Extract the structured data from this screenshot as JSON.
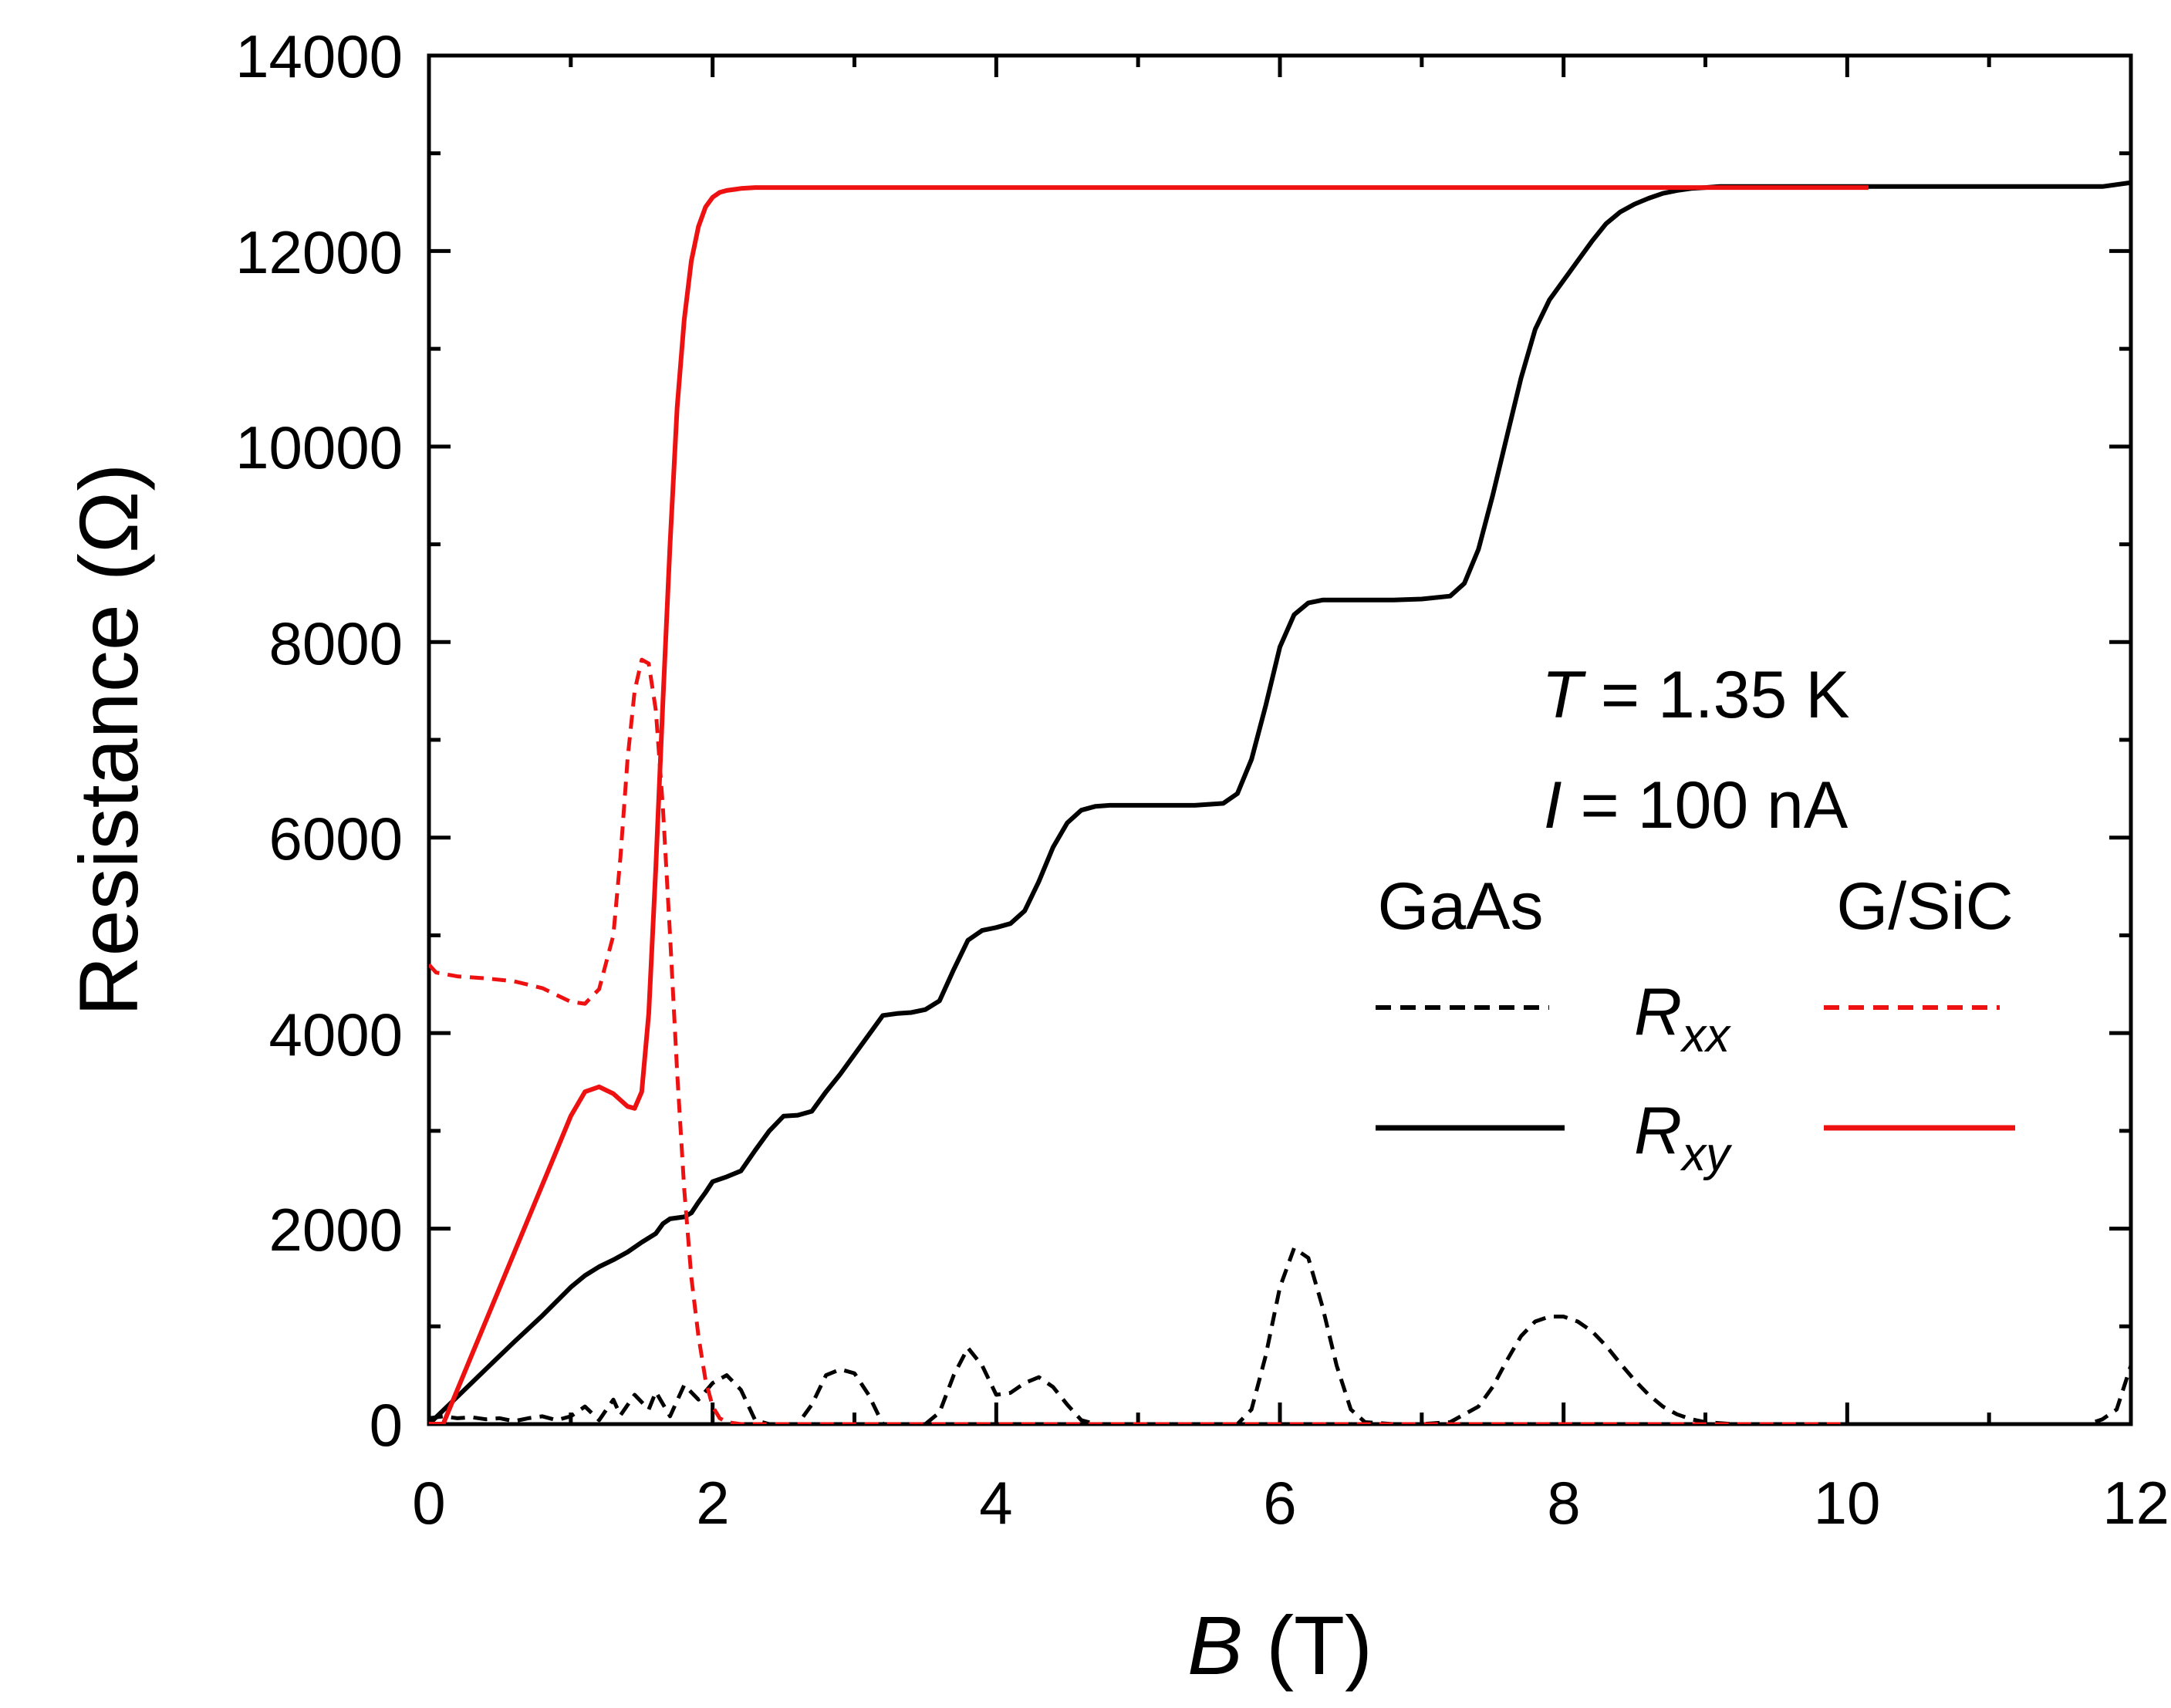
{
  "chart_data": {
    "type": "line",
    "title": "",
    "xlabel": {
      "symbol": "B",
      "unit": "(T)"
    },
    "ylabel": "Resistance (Ω)",
    "xlim": [
      0,
      12
    ],
    "ylim": [
      0,
      14000
    ],
    "xticks": [
      0,
      2,
      4,
      6,
      8,
      10,
      12
    ],
    "yticks": [
      0,
      2000,
      4000,
      6000,
      8000,
      10000,
      12000,
      14000
    ],
    "xtick_labels": [
      "0",
      "2",
      "4",
      "6",
      "8",
      "10",
      "12"
    ],
    "ytick_labels": [
      "0",
      "2000",
      "4000",
      "6000",
      "8000",
      "10000",
      "12000",
      "14000"
    ],
    "grid": false,
    "annotations": {
      "temperature": {
        "symbol": "T",
        "text": " = 1.35 K"
      },
      "current": {
        "symbol": "I",
        "text": " = 100 nA"
      }
    },
    "legend": {
      "placement": "right",
      "columns": [
        "GaAs",
        "G/SiC"
      ],
      "rows": [
        {
          "main": "R",
          "sub": "xx",
          "style": "dashed"
        },
        {
          "main": "R",
          "sub": "xy",
          "style": "solid"
        }
      ]
    },
    "colors": {
      "GaAs": "#000000",
      "G/SiC": "#ee1111"
    },
    "series": [
      {
        "name": "GaAs Rxy",
        "material": "GaAs",
        "quantity": "Rxy",
        "style": "solid",
        "x": [
          0,
          0.2,
          0.4,
          0.6,
          0.8,
          1.0,
          1.1,
          1.2,
          1.3,
          1.4,
          1.5,
          1.6,
          1.65,
          1.7,
          1.75,
          1.8,
          1.85,
          1.9,
          1.95,
          2.0,
          2.1,
          2.2,
          2.3,
          2.4,
          2.5,
          2.6,
          2.7,
          2.8,
          2.9,
          3.0,
          3.1,
          3.2,
          3.3,
          3.4,
          3.5,
          3.6,
          3.7,
          3.8,
          3.9,
          4.0,
          4.1,
          4.2,
          4.3,
          4.4,
          4.5,
          4.6,
          4.7,
          4.8,
          5.0,
          5.2,
          5.4,
          5.6,
          5.7,
          5.8,
          5.9,
          6.0,
          6.1,
          6.2,
          6.3,
          6.4,
          6.6,
          6.8,
          7.0,
          7.2,
          7.3,
          7.4,
          7.5,
          7.6,
          7.7,
          7.8,
          7.9,
          8.0,
          8.1,
          8.2,
          8.3,
          8.4,
          8.5,
          8.6,
          8.7,
          8.8,
          8.9,
          9.0,
          9.1,
          9.2,
          9.5,
          10.0,
          10.5,
          11.0,
          11.5,
          11.8,
          12.0
        ],
        "y": [
          0,
          280,
          560,
          840,
          1110,
          1400,
          1520,
          1610,
          1680,
          1760,
          1860,
          1950,
          2050,
          2100,
          2110,
          2120,
          2160,
          2270,
          2370,
          2480,
          2530,
          2590,
          2800,
          3000,
          3150,
          3160,
          3200,
          3400,
          3580,
          3780,
          3980,
          4180,
          4200,
          4210,
          4240,
          4330,
          4650,
          4950,
          5050,
          5080,
          5120,
          5250,
          5550,
          5900,
          6150,
          6280,
          6320,
          6330,
          6330,
          6330,
          6330,
          6350,
          6450,
          6800,
          7350,
          7950,
          8280,
          8400,
          8430,
          8430,
          8430,
          8430,
          8440,
          8470,
          8600,
          8950,
          9500,
          10100,
          10700,
          11200,
          11500,
          11700,
          11900,
          12100,
          12280,
          12400,
          12480,
          12540,
          12590,
          12620,
          12640,
          12650,
          12660,
          12660,
          12660,
          12660,
          12660,
          12660,
          12660,
          12660,
          12700
        ]
      },
      {
        "name": "GaAs Rxx",
        "material": "GaAs",
        "quantity": "Rxx",
        "style": "dashed",
        "x": [
          0,
          0.1,
          0.2,
          0.3,
          0.4,
          0.5,
          0.6,
          0.7,
          0.8,
          0.9,
          1.0,
          1.1,
          1.2,
          1.3,
          1.35,
          1.45,
          1.55,
          1.6,
          1.7,
          1.8,
          1.9,
          2.0,
          2.1,
          2.2,
          2.3,
          2.4,
          2.5,
          2.6,
          2.7,
          2.8,
          2.9,
          3.0,
          3.1,
          3.2,
          3.3,
          3.4,
          3.5,
          3.6,
          3.7,
          3.8,
          3.9,
          4.0,
          4.1,
          4.2,
          4.3,
          4.4,
          4.5,
          4.6,
          4.7,
          4.8,
          5.0,
          5.2,
          5.4,
          5.6,
          5.7,
          5.8,
          5.9,
          6.0,
          6.1,
          6.2,
          6.3,
          6.4,
          6.5,
          6.6,
          6.8,
          7.0,
          7.2,
          7.4,
          7.5,
          7.6,
          7.7,
          7.8,
          7.9,
          8.0,
          8.1,
          8.2,
          8.3,
          8.4,
          8.5,
          8.6,
          8.7,
          8.8,
          8.9,
          9.0,
          9.2,
          9.5,
          10.0,
          10.5,
          11.0,
          11.5,
          11.7,
          11.8,
          11.9,
          12.0
        ],
        "y": [
          60,
          80,
          60,
          70,
          50,
          60,
          30,
          60,
          80,
          40,
          80,
          180,
          40,
          250,
          90,
          300,
          150,
          330,
          80,
          400,
          250,
          420,
          500,
          350,
          40,
          0,
          0,
          0,
          200,
          500,
          560,
          520,
          300,
          0,
          0,
          0,
          0,
          120,
          500,
          780,
          600,
          300,
          320,
          420,
          480,
          380,
          200,
          40,
          0,
          0,
          0,
          0,
          0,
          0,
          0,
          150,
          700,
          1400,
          1800,
          1700,
          1200,
          600,
          150,
          20,
          0,
          0,
          20,
          180,
          380,
          650,
          900,
          1050,
          1100,
          1100,
          1050,
          950,
          800,
          620,
          450,
          300,
          180,
          100,
          50,
          20,
          0,
          0,
          0,
          0,
          0,
          0,
          0,
          50,
          150,
          600
        ]
      },
      {
        "name": "G/SiC Rxy",
        "material": "G/SiC",
        "quantity": "Rxy",
        "style": "solid",
        "x": [
          0,
          0.1,
          0.3,
          0.5,
          0.7,
          0.9,
          1.0,
          1.1,
          1.2,
          1.3,
          1.4,
          1.45,
          1.5,
          1.55,
          1.6,
          1.65,
          1.7,
          1.75,
          1.8,
          1.85,
          1.9,
          1.95,
          2.0,
          2.05,
          2.1,
          2.15,
          2.2,
          2.3,
          2.5,
          3.0,
          4.0,
          6.0,
          8.0,
          10.0,
          10.15
        ],
        "y": [
          0,
          0,
          700,
          1400,
          2100,
          2800,
          3150,
          3400,
          3450,
          3380,
          3250,
          3230,
          3400,
          4200,
          5700,
          7400,
          9000,
          10400,
          11300,
          11900,
          12250,
          12450,
          12550,
          12600,
          12620,
          12630,
          12640,
          12650,
          12650,
          12650,
          12650,
          12650,
          12650,
          12650,
          12650
        ]
      },
      {
        "name": "G/SiC Rxx",
        "material": "G/SiC",
        "quantity": "Rxx",
        "style": "dashed",
        "x": [
          0,
          0.05,
          0.2,
          0.4,
          0.6,
          0.8,
          1.0,
          1.1,
          1.2,
          1.3,
          1.35,
          1.4,
          1.45,
          1.5,
          1.55,
          1.6,
          1.65,
          1.7,
          1.75,
          1.8,
          1.85,
          1.9,
          1.95,
          2.0,
          2.05,
          2.1,
          2.15,
          2.2,
          2.3,
          3.0,
          5.0,
          8.0,
          10.0
        ],
        "y": [
          4700,
          4620,
          4580,
          4560,
          4530,
          4460,
          4320,
          4300,
          4450,
          5000,
          5800,
          6800,
          7500,
          7820,
          7780,
          7300,
          6300,
          5000,
          3600,
          2400,
          1500,
          900,
          450,
          180,
          60,
          20,
          10,
          0,
          0,
          0,
          0,
          0,
          0
        ]
      }
    ]
  }
}
